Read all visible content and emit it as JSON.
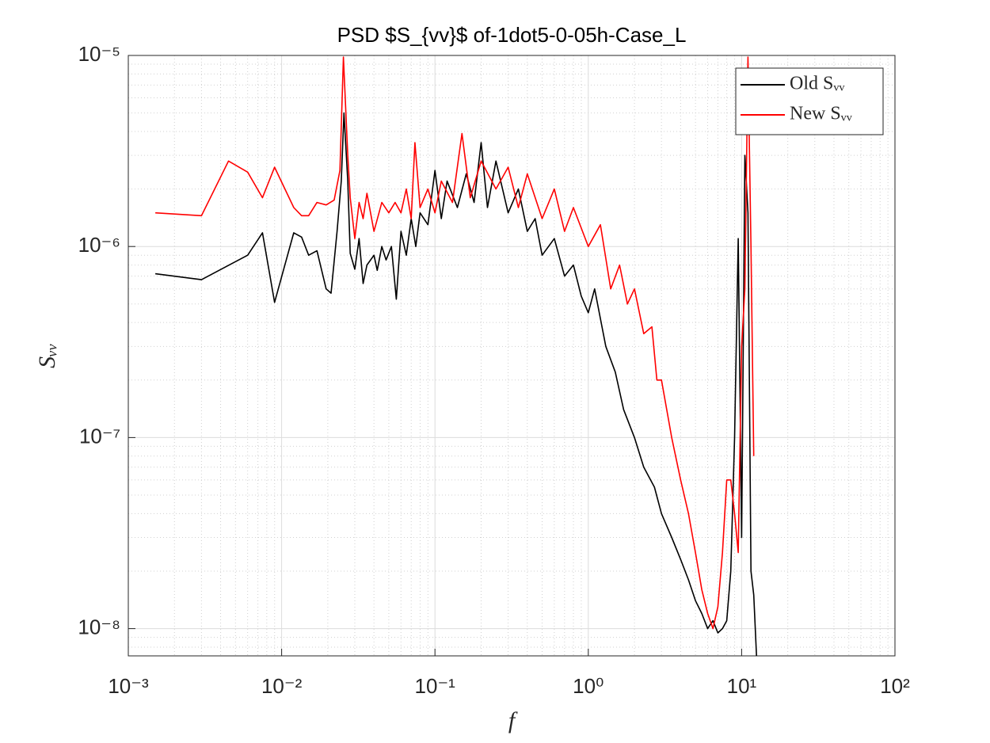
{
  "chart_data": {
    "type": "line",
    "title": "PSD $S_{vv}$ of-1dot5-0-05h-Case_L",
    "x_label": "f",
    "y_label": "Sᵥᵥ",
    "log_x": true,
    "log_y": true,
    "grid": true,
    "minor_grid": true,
    "legend": "northeast",
    "xlim": [
      0.001,
      100
    ],
    "xticks": [
      {
        "value": 0.001,
        "label": "10⁻³"
      },
      {
        "value": 0.01,
        "label": "10⁻²"
      },
      {
        "value": 0.1,
        "label": "10⁻¹"
      },
      {
        "value": 1,
        "label": "10⁰"
      },
      {
        "value": 10,
        "label": "10¹"
      },
      {
        "value": 100,
        "label": "10²"
      }
    ],
    "ylim": [
      7.2e-09,
      1e-05
    ],
    "yticks": [
      {
        "value": 1e-08,
        "label": "10⁻⁸"
      },
      {
        "value": 1e-07,
        "label": "10⁻⁷"
      },
      {
        "value": 1e-06,
        "label": "10⁻⁶"
      },
      {
        "value": 1e-05,
        "label": "10⁻⁵"
      }
    ],
    "series": [
      {
        "name": "Old Sᵥᵥ",
        "color": "#000000",
        "x": [
          0.0015,
          0.003,
          0.006,
          0.0075,
          0.009,
          0.012,
          0.0135,
          0.015,
          0.017,
          0.0195,
          0.021,
          0.023,
          0.0245,
          0.0255,
          0.027,
          0.028,
          0.03,
          0.032,
          0.034,
          0.036,
          0.04,
          0.042,
          0.045,
          0.048,
          0.052,
          0.056,
          0.06,
          0.065,
          0.07,
          0.075,
          0.08,
          0.09,
          0.1,
          0.11,
          0.12,
          0.14,
          0.16,
          0.18,
          0.2,
          0.22,
          0.25,
          0.3,
          0.35,
          0.4,
          0.45,
          0.5,
          0.6,
          0.7,
          0.8,
          0.9,
          1.0,
          1.1,
          1.3,
          1.5,
          1.7,
          2.0,
          2.3,
          2.7,
          3.0,
          3.5,
          4.0,
          4.5,
          5.0,
          5.5,
          6.0,
          6.5,
          7.0,
          7.5,
          8.0,
          8.5,
          9.0,
          9.5,
          10,
          10.5,
          11,
          11.5,
          12,
          12.5
        ],
        "values": [
          7.2e-07,
          6.7e-07,
          9e-07,
          1.18e-06,
          5.1e-07,
          1.18e-06,
          1.12e-06,
          9e-07,
          9.5e-07,
          6e-07,
          5.7e-07,
          1.2e-06,
          2.2e-06,
          5e-06,
          2.2e-06,
          9.2e-07,
          7.6e-07,
          1.1e-06,
          6.4e-07,
          8e-07,
          9e-07,
          7.5e-07,
          1e-06,
          8.5e-07,
          1e-06,
          5.3e-07,
          1.2e-06,
          9e-07,
          1.4e-06,
          1e-06,
          1.5e-06,
          1.3e-06,
          2.5e-06,
          1.4e-06,
          2.2e-06,
          1.6e-06,
          2.4e-06,
          1.7e-06,
          3.5e-06,
          1.6e-06,
          2.8e-06,
          1.5e-06,
          2e-06,
          1.2e-06,
          1.4e-06,
          9e-07,
          1.1e-06,
          7e-07,
          8e-07,
          5.5e-07,
          4.5e-07,
          6e-07,
          3e-07,
          2.2e-07,
          1.4e-07,
          1e-07,
          7e-08,
          5.5e-08,
          4e-08,
          3e-08,
          2.3e-08,
          1.8e-08,
          1.4e-08,
          1.2e-08,
          1e-08,
          1.1e-08,
          9.5e-09,
          1e-08,
          1.1e-08,
          2e-08,
          1e-07,
          1.1e-06,
          3e-08,
          3e-06,
          1.5e-06,
          2e-08,
          1.5e-08,
          7.2e-09
        ]
      },
      {
        "name": "New Sᵥᵥ",
        "color": "#ff0000",
        "x": [
          0.0015,
          0.003,
          0.0045,
          0.006,
          0.0075,
          0.009,
          0.012,
          0.0135,
          0.015,
          0.017,
          0.0195,
          0.022,
          0.024,
          0.0253,
          0.027,
          0.028,
          0.03,
          0.032,
          0.034,
          0.036,
          0.04,
          0.045,
          0.05,
          0.055,
          0.06,
          0.065,
          0.07,
          0.074,
          0.08,
          0.09,
          0.1,
          0.11,
          0.13,
          0.15,
          0.17,
          0.2,
          0.25,
          0.3,
          0.35,
          0.4,
          0.5,
          0.6,
          0.7,
          0.8,
          1.0,
          1.2,
          1.4,
          1.6,
          1.8,
          2.0,
          2.3,
          2.6,
          2.8,
          3.0,
          3.5,
          4.0,
          4.5,
          5.0,
          5.5,
          6.0,
          6.5,
          7.0,
          7.5,
          8.0,
          8.5,
          9.0,
          9.5,
          10,
          10.5,
          11,
          11.5,
          12
        ],
        "values": [
          1.5e-06,
          1.45e-06,
          2.8e-06,
          2.45e-06,
          1.8e-06,
          2.6e-06,
          1.6e-06,
          1.45e-06,
          1.45e-06,
          1.7e-06,
          1.65e-06,
          1.75e-06,
          2.5e-06,
          9.8e-06,
          3e-06,
          1.8e-06,
          1.1e-06,
          1.7e-06,
          1.4e-06,
          1.9e-06,
          1.2e-06,
          1.7e-06,
          1.5e-06,
          1.7e-06,
          1.5e-06,
          2e-06,
          1.4e-06,
          3.5e-06,
          1.6e-06,
          2e-06,
          1.5e-06,
          2.2e-06,
          1.7e-06,
          3.9e-06,
          1.8e-06,
          2.8e-06,
          2e-06,
          2.6e-06,
          1.6e-06,
          2.4e-06,
          1.4e-06,
          2e-06,
          1.2e-06,
          1.6e-06,
          1e-06,
          1.3e-06,
          6e-07,
          8e-07,
          5e-07,
          6e-07,
          3.5e-07,
          3.8e-07,
          2e-07,
          2e-07,
          1e-07,
          6e-08,
          4e-08,
          2.5e-08,
          1.6e-08,
          1.2e-08,
          1e-08,
          1.3e-08,
          2.5e-08,
          6e-08,
          6e-08,
          4e-08,
          2.5e-08,
          3e-07,
          6e-07,
          9.8e-06,
          1e-06,
          8e-08
        ]
      }
    ]
  }
}
